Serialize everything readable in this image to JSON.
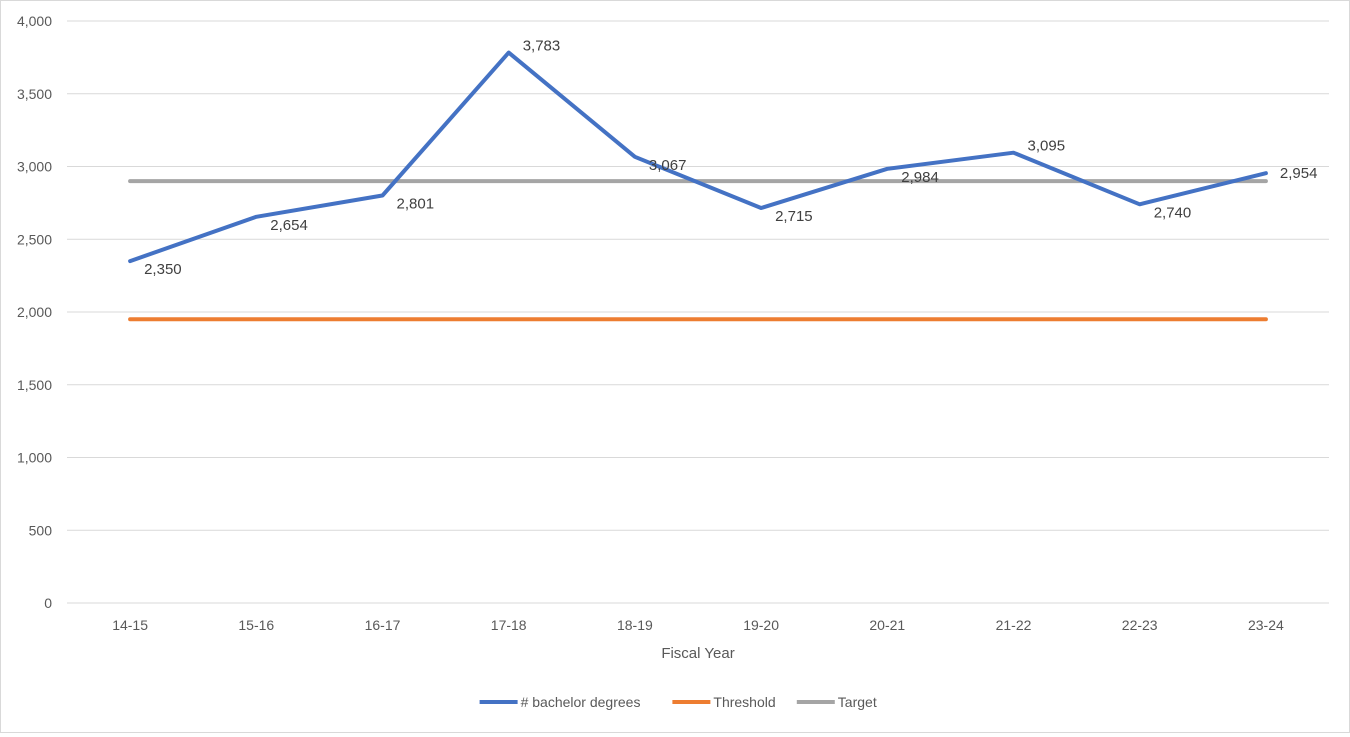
{
  "chart_data": {
    "type": "line",
    "title": "",
    "xlabel": "Fiscal Year",
    "ylabel": "",
    "categories": [
      "14-15",
      "15-16",
      "16-17",
      "17-18",
      "18-19",
      "19-20",
      "20-21",
      "21-22",
      "22-23",
      "23-24"
    ],
    "ylim": [
      0,
      4000
    ],
    "yticks": [
      0,
      500,
      1000,
      1500,
      2000,
      2500,
      3000,
      3500,
      4000
    ],
    "ytick_labels": [
      "0",
      "500",
      "1,000",
      "1,500",
      "2,000",
      "2,500",
      "3,000",
      "3,500",
      "4,000"
    ],
    "grid": true,
    "legend_position": "bottom",
    "series": [
      {
        "name": "# bachelor degrees",
        "color": "#4472C4",
        "values": [
          2350,
          2654,
          2801,
          3783,
          3067,
          2715,
          2984,
          3095,
          2740,
          2954
        ],
        "data_labels": [
          "2,350",
          "2,654",
          "2,801",
          "3,783",
          "3,067",
          "2,715",
          "2,984",
          "3,095",
          "2,740",
          "2,954"
        ]
      },
      {
        "name": "Threshold",
        "color": "#ED7D31",
        "values": [
          1950,
          1950,
          1950,
          1950,
          1950,
          1950,
          1950,
          1950,
          1950,
          1950
        ]
      },
      {
        "name": "Target",
        "color": "#A5A5A5",
        "values": [
          2900,
          2900,
          2900,
          2900,
          2900,
          2900,
          2900,
          2900,
          2900,
          2900
        ]
      }
    ]
  }
}
